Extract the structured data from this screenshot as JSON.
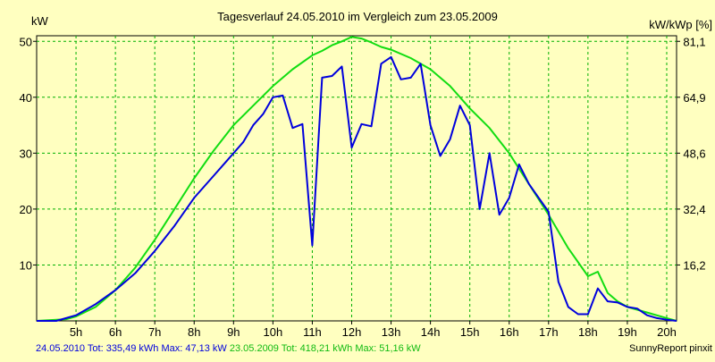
{
  "chart_data": {
    "type": "line",
    "title": "Tagesverlauf 24.05.2010 im Vergleich zum 23.05.2009",
    "y_left_label": "kW",
    "y_right_label": "kW/kWp [%]",
    "y_left_ticks": [
      "10",
      "20",
      "30",
      "40",
      "50"
    ],
    "y_right_ticks": [
      "16,2",
      "32,4",
      "48,6",
      "64,9",
      "81,1"
    ],
    "x_ticks": [
      "5h",
      "6h",
      "7h",
      "8h",
      "9h",
      "10h",
      "11h",
      "12h",
      "13h",
      "14h",
      "15h",
      "16h",
      "17h",
      "18h",
      "19h",
      "20h"
    ],
    "xlim": [
      4.0,
      20.25
    ],
    "ylim": [
      0,
      51
    ],
    "grid": true,
    "series": [
      {
        "name": "24.05.2010",
        "color": "#0000DD",
        "points": [
          [
            4.0,
            0
          ],
          [
            4.5,
            0
          ],
          [
            5.0,
            1.0
          ],
          [
            5.5,
            3.0
          ],
          [
            6.0,
            5.5
          ],
          [
            6.5,
            8.5
          ],
          [
            7.0,
            12.5
          ],
          [
            7.5,
            17.0
          ],
          [
            8.0,
            22.0
          ],
          [
            8.5,
            26.0
          ],
          [
            9.0,
            30.0
          ],
          [
            9.25,
            32.0
          ],
          [
            9.5,
            35.0
          ],
          [
            9.75,
            37.0
          ],
          [
            10.0,
            40.0
          ],
          [
            10.25,
            40.3
          ],
          [
            10.5,
            34.5
          ],
          [
            10.75,
            35.2
          ],
          [
            11.0,
            13.5
          ],
          [
            11.25,
            43.5
          ],
          [
            11.5,
            43.8
          ],
          [
            11.75,
            45.5
          ],
          [
            12.0,
            31.0
          ],
          [
            12.25,
            35.2
          ],
          [
            12.5,
            34.8
          ],
          [
            12.75,
            46.0
          ],
          [
            13.0,
            47.2
          ],
          [
            13.25,
            43.2
          ],
          [
            13.5,
            43.5
          ],
          [
            13.75,
            46.0
          ],
          [
            14.0,
            35.0
          ],
          [
            14.25,
            29.5
          ],
          [
            14.5,
            32.5
          ],
          [
            14.75,
            38.5
          ],
          [
            15.0,
            35.0
          ],
          [
            15.25,
            20.0
          ],
          [
            15.5,
            30.0
          ],
          [
            15.75,
            19.0
          ],
          [
            16.0,
            22.0
          ],
          [
            16.25,
            28.0
          ],
          [
            16.5,
            24.5
          ],
          [
            16.75,
            22.0
          ],
          [
            17.0,
            19.5
          ],
          [
            17.25,
            7.0
          ],
          [
            17.5,
            2.5
          ],
          [
            17.75,
            1.2
          ],
          [
            18.0,
            1.2
          ],
          [
            18.25,
            5.8
          ],
          [
            18.5,
            3.5
          ],
          [
            18.75,
            3.3
          ],
          [
            19.0,
            2.5
          ],
          [
            19.25,
            2.2
          ],
          [
            19.5,
            1.0
          ],
          [
            19.75,
            0.5
          ],
          [
            20.0,
            0.2
          ],
          [
            20.25,
            0
          ]
        ]
      },
      {
        "name": "23.05.2009",
        "color": "#11DD11",
        "points": [
          [
            4.0,
            0
          ],
          [
            4.75,
            0.3
          ],
          [
            5.0,
            0.8
          ],
          [
            5.5,
            2.5
          ],
          [
            6.0,
            5.5
          ],
          [
            6.5,
            9.5
          ],
          [
            7.0,
            14.5
          ],
          [
            7.5,
            20.0
          ],
          [
            8.0,
            25.5
          ],
          [
            8.5,
            30.5
          ],
          [
            9.0,
            35.0
          ],
          [
            9.5,
            38.5
          ],
          [
            10.0,
            42.0
          ],
          [
            10.5,
            45.0
          ],
          [
            11.0,
            47.5
          ],
          [
            11.25,
            48.3
          ],
          [
            11.5,
            49.3
          ],
          [
            11.75,
            50.0
          ],
          [
            12.0,
            50.8
          ],
          [
            12.25,
            50.5
          ],
          [
            12.5,
            49.8
          ],
          [
            12.75,
            49.0
          ],
          [
            13.0,
            48.5
          ],
          [
            13.5,
            47.0
          ],
          [
            14.0,
            45.0
          ],
          [
            14.5,
            42.0
          ],
          [
            15.0,
            38.0
          ],
          [
            15.5,
            34.5
          ],
          [
            16.0,
            30.0
          ],
          [
            16.5,
            24.5
          ],
          [
            17.0,
            19.0
          ],
          [
            17.5,
            13.0
          ],
          [
            18.0,
            8.0
          ],
          [
            18.25,
            8.8
          ],
          [
            18.5,
            5.0
          ],
          [
            18.75,
            3.5
          ],
          [
            19.0,
            2.5
          ],
          [
            19.5,
            1.5
          ],
          [
            20.0,
            0.5
          ],
          [
            20.25,
            0
          ]
        ]
      }
    ],
    "footer_left": [
      {
        "text": "24.05.2010 Tot: 335,49 kWh Max: 47,13 kW",
        "color": "#0000DD"
      },
      {
        "text": "23.05.2009 Tot: 418,21 kWh Max: 51,16 kW",
        "color": "#11BB11"
      }
    ],
    "footer_right": "SunnyReport pinxit"
  }
}
